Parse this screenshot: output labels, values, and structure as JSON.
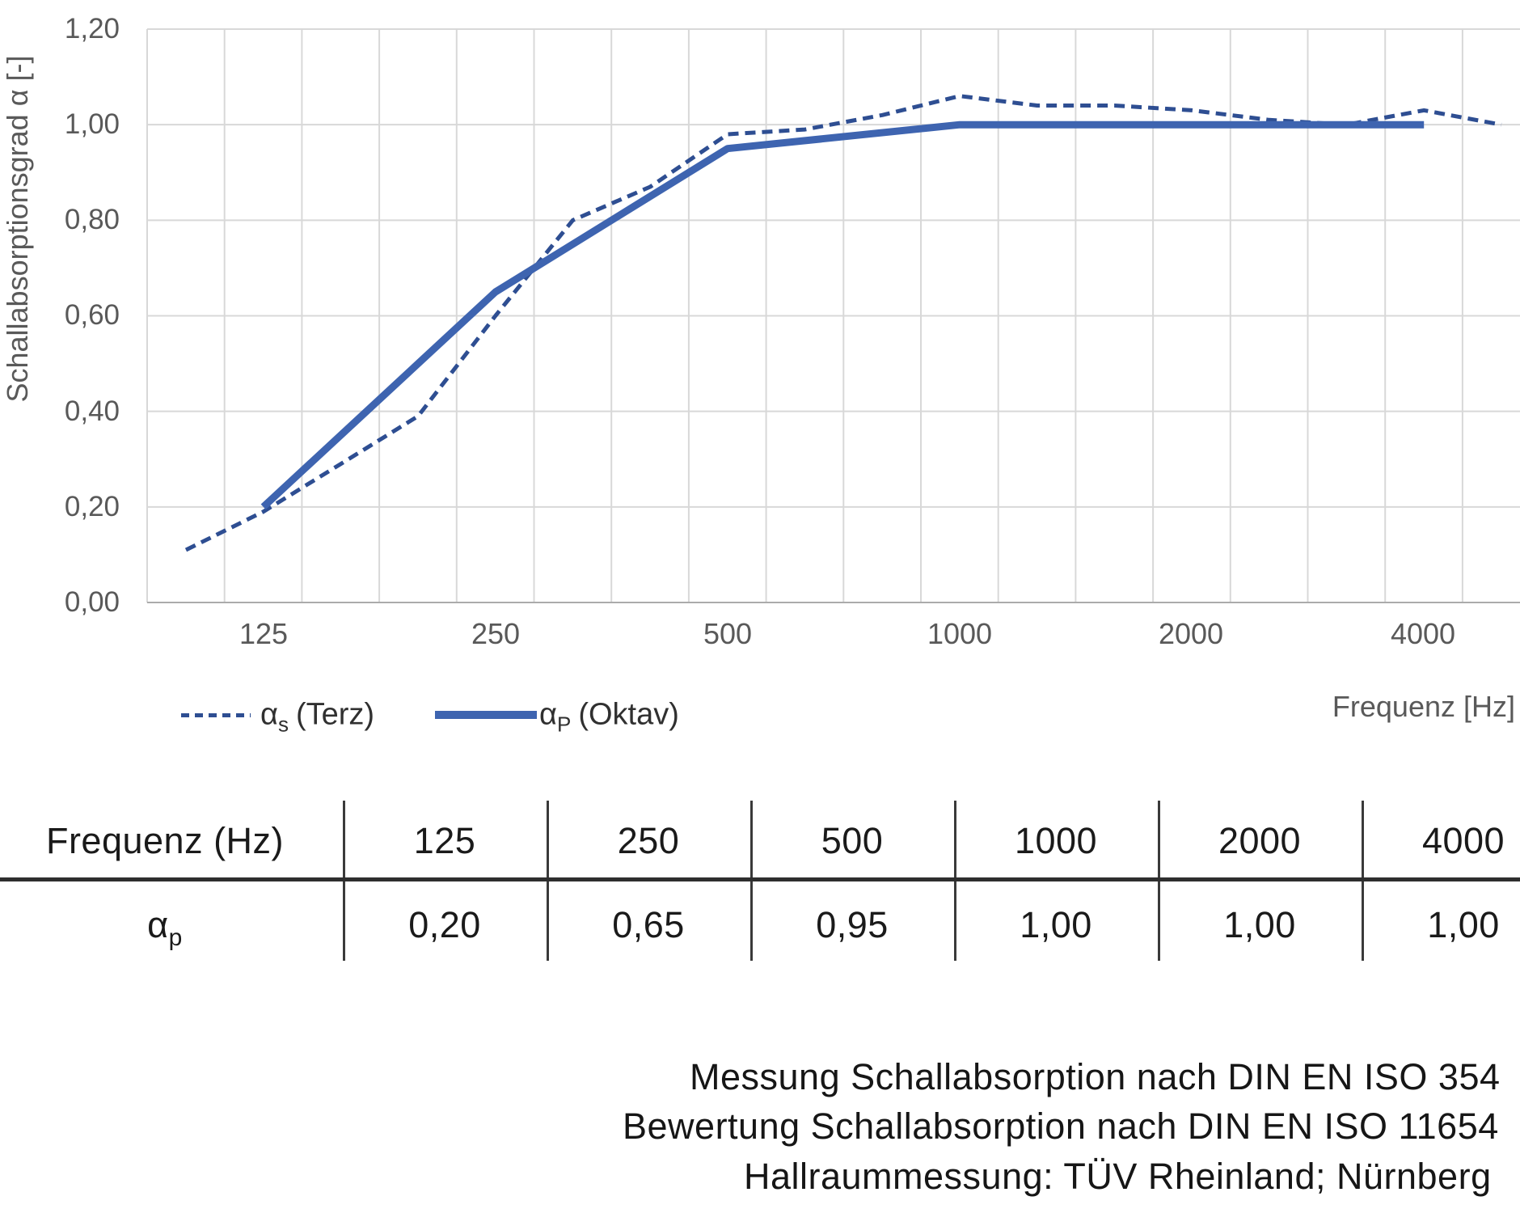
{
  "chart": {
    "y_axis_title": "Schallabsorptionsgrad α [-]",
    "x_axis_title": "Frequenz [Hz]",
    "y_ticks": [
      "0,00",
      "0,20",
      "0,40",
      "0,60",
      "0,80",
      "1,00",
      "1,20"
    ],
    "x_ticks": [
      "125",
      "250",
      "500",
      "1000",
      "2000",
      "4000"
    ],
    "legend": [
      {
        "alpha": "α",
        "sub": "s",
        "rest": "(Terz)"
      },
      {
        "alpha": "α",
        "sub": "P",
        "rest": "(Oktav)"
      }
    ]
  },
  "chart_data": {
    "type": "line",
    "title": "",
    "xlabel": "Frequenz [Hz]",
    "ylabel": "Schallabsorptionsgrad α [-]",
    "ylim": [
      0,
      1.2
    ],
    "y_tick_step": 0.2,
    "grid": true,
    "legend_position": "bottom-left",
    "x_scale": "third-octave categories",
    "categories": [
      100,
      125,
      160,
      200,
      250,
      315,
      400,
      500,
      630,
      800,
      1000,
      1250,
      1600,
      2000,
      2500,
      3150,
      4000,
      5000
    ],
    "labeled_categories": [
      125,
      250,
      500,
      1000,
      2000,
      4000
    ],
    "series": [
      {
        "name": "αs (Terz)",
        "style": "dashed",
        "values": [
          0.11,
          0.19,
          0.29,
          0.39,
          0.6,
          0.8,
          0.87,
          0.98,
          0.99,
          1.02,
          1.06,
          1.04,
          1.04,
          1.03,
          1.01,
          1.0,
          1.03,
          1.0
        ]
      },
      {
        "name": "αP (Oktav)",
        "style": "solid",
        "x": [
          125,
          250,
          500,
          1000,
          2000,
          4000
        ],
        "values": [
          0.2,
          0.65,
          0.95,
          1.0,
          1.0,
          1.0
        ]
      }
    ]
  },
  "table": {
    "header": [
      "Frequenz (Hz)",
      "125",
      "250",
      "500",
      "1000",
      "2000",
      "4000"
    ],
    "row_label": {
      "alpha": "α",
      "sub": "p"
    },
    "values": [
      "0,20",
      "0,65",
      "0,95",
      "1,00",
      "1,00",
      "1,00"
    ]
  },
  "footer": {
    "lines": [
      "Messung Schallabsorption nach DIN EN ISO 354",
      "Bewertung Schallabsorption nach DIN EN ISO 11654",
      "Hallraummessung: TÜV Rheinland; Nürnberg"
    ]
  },
  "colors": {
    "line_solid": "#3E64B0",
    "line_dashed": "#2E4E92",
    "grid": "#D8D8D8",
    "axis": "#ABABAB",
    "axis_text": "#595959",
    "table_line": "#3A3A3A",
    "text": "#1A1A1A"
  }
}
